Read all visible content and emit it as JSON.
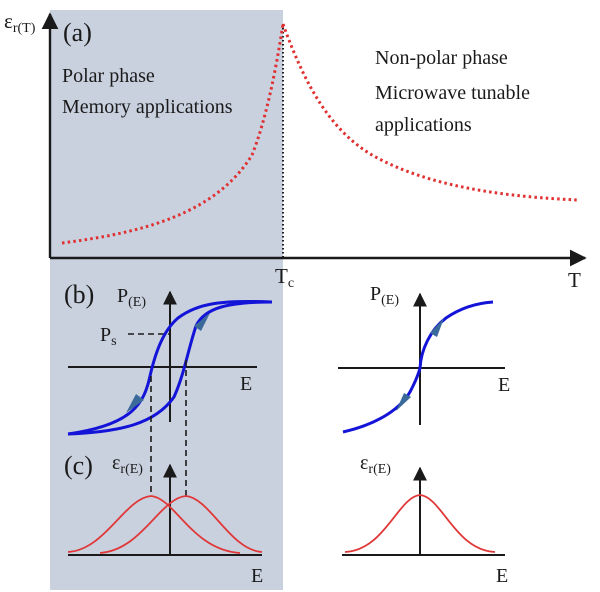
{
  "colors": {
    "polar_region": "#c9d1df",
    "permittivity_curve": "#e03030",
    "hysteresis_loop": "#1414d8",
    "loop_arrow": "#3a6a9a",
    "epsilon_e_curve": "#e03838",
    "axis": "#1a1a1a"
  },
  "panel_a": {
    "label": "(a)",
    "y_axis_symbol": "ε",
    "y_axis_subscript": "r(T)",
    "x_axis_label": "T",
    "transition_symbol": "T",
    "transition_subscript": "c",
    "polar_title": "Polar phase",
    "polar_application": "Memory applications",
    "nonpolar_title": "Non-polar phase",
    "nonpolar_application_line1": "Microwave tunable",
    "nonpolar_application_line2": "applications"
  },
  "panel_b": {
    "label": "(b)",
    "left": {
      "y_symbol": "P",
      "y_subscript": "(E)",
      "x_label": "E",
      "saturation_symbol": "P",
      "saturation_subscript": "s"
    },
    "right": {
      "y_symbol": "P",
      "y_subscript": "(E)",
      "x_label": "E"
    }
  },
  "panel_c": {
    "label": "(c)",
    "left": {
      "y_symbol": "ε",
      "y_subscript": "r(E)",
      "x_label": "E"
    },
    "right": {
      "y_symbol": "ε",
      "y_subscript": "r(E)",
      "x_label": "E"
    }
  }
}
